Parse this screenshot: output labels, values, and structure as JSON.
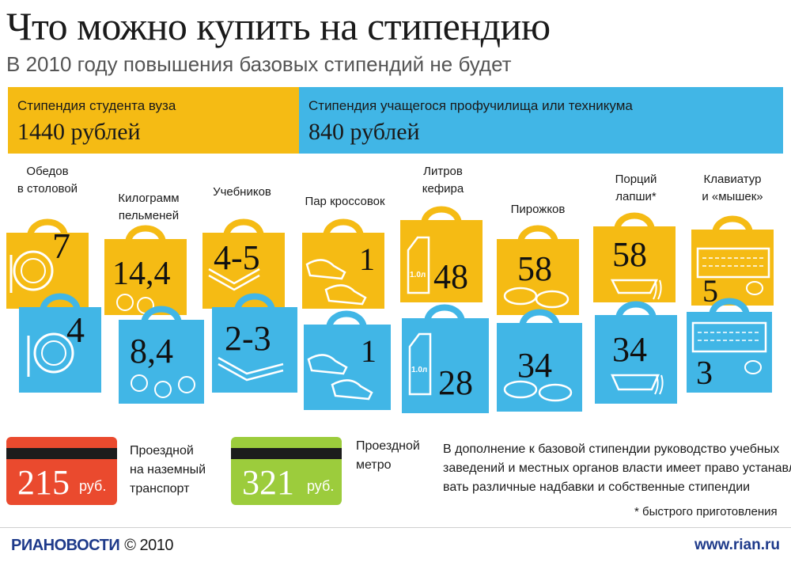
{
  "title": "Что можно купить на стипендию",
  "subtitle": "В 2010 году повышения базовых стипендий не будет",
  "stipend_university": {
    "label": "Стипендия студента вуза",
    "amount": "1440 рублей",
    "color": "#f5bb14"
  },
  "stipend_college": {
    "label": "Стипендия учащегося профучилища или техникума",
    "amount": "840 рублей",
    "color": "#41b6e6"
  },
  "categories": [
    {
      "label_lines": [
        "Обедов",
        "в столовой"
      ],
      "university": "7",
      "college": "4",
      "icon": "plate-icon"
    },
    {
      "label_lines": [
        "Килограмм",
        "пельменей"
      ],
      "university": "14,4",
      "college": "8,4",
      "icon": "dumplings-icon"
    },
    {
      "label_lines": [
        "Учебников"
      ],
      "university": "4-5",
      "college": "2-3",
      "icon": "book-icon"
    },
    {
      "label_lines": [
        "Пар кроссовок"
      ],
      "university": "1",
      "college": "1",
      "icon": "sneakers-icon"
    },
    {
      "label_lines": [
        "Литров",
        "кефира"
      ],
      "university": "48",
      "college": "28",
      "icon": "kefir-carton-icon",
      "carton_label": "1.0л"
    },
    {
      "label_lines": [
        "Пирожков"
      ],
      "university": "58",
      "college": "34",
      "icon": "pies-icon"
    },
    {
      "label_lines": [
        "Порций",
        "лапши*"
      ],
      "university": "58",
      "college": "34",
      "icon": "noodles-icon"
    },
    {
      "label_lines": [
        "Клавиатур",
        "и «мышек»"
      ],
      "university": "5",
      "college": "3",
      "icon": "keyboard-icon"
    }
  ],
  "tickets": [
    {
      "value": "215",
      "unit": "руб.",
      "label_lines": [
        "Проездной",
        "на наземный",
        "транспорт"
      ],
      "color": "#ea4a2e"
    },
    {
      "value": "321",
      "unit": "руб.",
      "label_lines": [
        "Проездной",
        "метро"
      ],
      "color": "#9ccc3c"
    }
  ],
  "note_lines": [
    "В дополнение к базовой стипендии руководство учебных",
    "заведений и местных органов власти имеет право устанавли-",
    "вать различные надбавки и собственные стипендии"
  ],
  "footnote": "* быстрого приготовления",
  "footer": {
    "logo_ria": "РИА",
    "logo_news": "НОВОСТИ",
    "copyright": "© 2010",
    "site": "www.rian.ru"
  }
}
